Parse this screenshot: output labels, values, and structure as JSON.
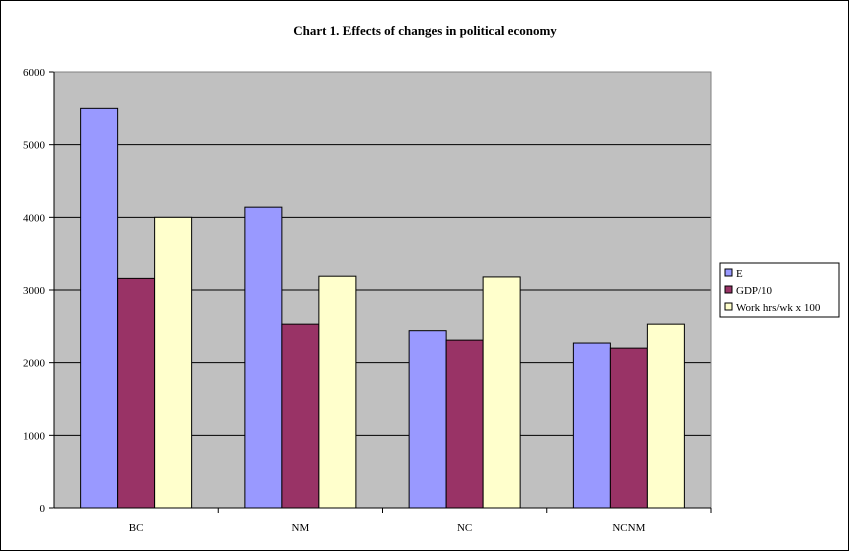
{
  "chart_data": {
    "type": "bar",
    "title": "Chart 1.  Effects of changes in political economy",
    "xlabel": "",
    "ylabel": "",
    "categories": [
      "BC",
      "NM",
      "NC",
      "NCNM"
    ],
    "series": [
      {
        "name": "E",
        "values": [
          5500,
          4140,
          2440,
          2270
        ],
        "color": "#9999ff"
      },
      {
        "name": "GDP/10",
        "values": [
          3160,
          2530,
          2310,
          2200
        ],
        "color": "#993366"
      },
      {
        "name": "Work hrs/wk x 100",
        "values": [
          4000,
          3190,
          3180,
          2530
        ],
        "color": "#ffffcc"
      }
    ],
    "ylim": [
      0,
      6000
    ],
    "yticks": [
      0,
      1000,
      2000,
      3000,
      4000,
      5000,
      6000
    ],
    "grid": true,
    "legend_position": "right",
    "plot_background": "#c0c0c0"
  }
}
